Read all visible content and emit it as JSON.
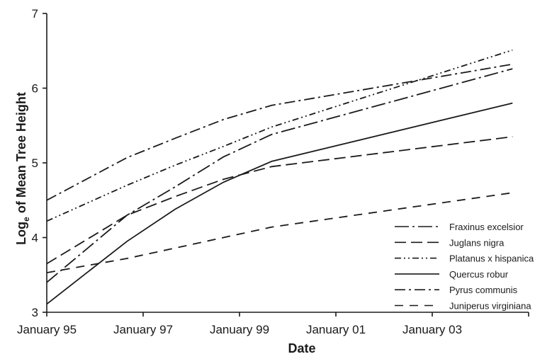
{
  "chart_data": {
    "type": "line",
    "title": "",
    "xlabel": "Date",
    "ylabel": "Logₑ of Mean Tree Height",
    "ylabel_main": "Log",
    "ylabel_subscript": "e",
    "ylabel_rest": " of Mean Tree Height",
    "xlim": [
      "1995-01",
      "2005-01"
    ],
    "ylim": [
      3,
      7
    ],
    "x_ticks": [
      "1995-01",
      "1997-01",
      "1999-01",
      "2001-01",
      "2003-01"
    ],
    "x_tick_labels": [
      "January 95",
      "January 97",
      "January 99",
      "January 01",
      "January 03"
    ],
    "y_ticks": [
      3,
      4,
      5,
      6,
      7
    ],
    "y_tick_labels": [
      "3",
      "4",
      "5",
      "6",
      "7"
    ],
    "grid": false,
    "legend_position": "bottom-right",
    "x": [
      "1995-01",
      "1996-09",
      "1997-09",
      "1998-09",
      "1999-09",
      "2004-09"
    ],
    "series": [
      {
        "name": "Fraxinus excelsior",
        "dash": "long-dash-dot",
        "values": [
          3.4,
          4.3,
          4.68,
          5.08,
          5.38,
          6.26
        ]
      },
      {
        "name": "Juglans nigra",
        "dash": "long-dash",
        "values": [
          3.65,
          4.3,
          4.55,
          4.78,
          4.95,
          5.35
        ]
      },
      {
        "name": "Platanus x hispanica",
        "dash": "dash-dot-dot",
        "values": [
          4.22,
          4.7,
          4.97,
          5.22,
          5.48,
          6.51
        ]
      },
      {
        "name": "Quercus robur",
        "dash": "solid",
        "values": [
          3.11,
          3.95,
          4.38,
          4.74,
          5.02,
          5.8
        ]
      },
      {
        "name": "Pyrus communis",
        "dash": "dash-dot",
        "values": [
          4.5,
          5.07,
          5.33,
          5.58,
          5.77,
          6.32
        ]
      },
      {
        "name": "Juniperus virginiana",
        "dash": "medium-dash",
        "values": [
          3.53,
          3.72,
          3.86,
          4.0,
          4.14,
          4.6
        ]
      }
    ],
    "line_color": "#1a1a1a"
  }
}
